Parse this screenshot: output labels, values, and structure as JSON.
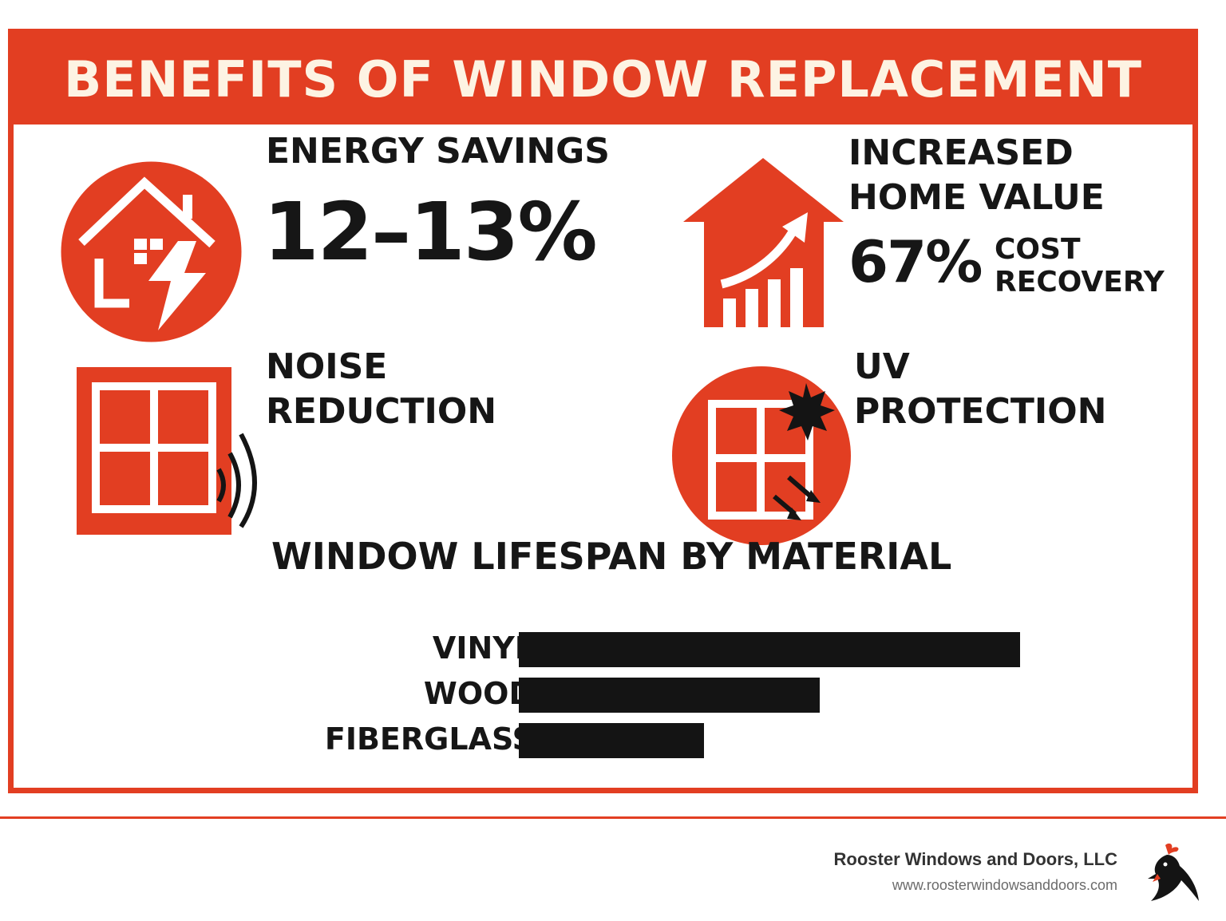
{
  "banner": {
    "title": "BENEFITS OF WINDOW REPLACEMENT"
  },
  "benefits": {
    "energy": {
      "heading": "ENERGY SAVINGS",
      "value": "12–13%"
    },
    "value": {
      "heading_line1": "INCREASED",
      "heading_line2": "HOME VALUE",
      "value": "67%",
      "sub_line1": "COST",
      "sub_line2": "RECOVERY"
    },
    "noise": {
      "heading_line1": "NOISE",
      "heading_line2": "REDUCTION"
    },
    "uv": {
      "heading_line1": "UV",
      "heading_line2": "PROTECTION"
    }
  },
  "icons": {
    "energy": "house-lightning-icon",
    "value": "house-growth-icon",
    "noise": "window-sound-icon",
    "uv": "window-sun-icon"
  },
  "lifespan": {
    "heading": "WINDOW LIFESPAN BY MATERIAL"
  },
  "chart_data": {
    "type": "bar",
    "orientation": "horizontal",
    "title": "WINDOW LIFESPAN BY MATERIAL",
    "categories": [
      "VINYL",
      "WOOD",
      "FIBERGLASS"
    ],
    "values": [
      1.0,
      0.6,
      0.37
    ],
    "value_scale": "relative length (no axis printed)",
    "color": "#141414"
  },
  "footer": {
    "company": "Rooster Windows and Doors, LLC",
    "url": "www.roosterwindowsanddoors.com"
  },
  "colors": {
    "accent": "#e23e22",
    "banner_text": "#fdf3e3",
    "text": "#161616"
  }
}
